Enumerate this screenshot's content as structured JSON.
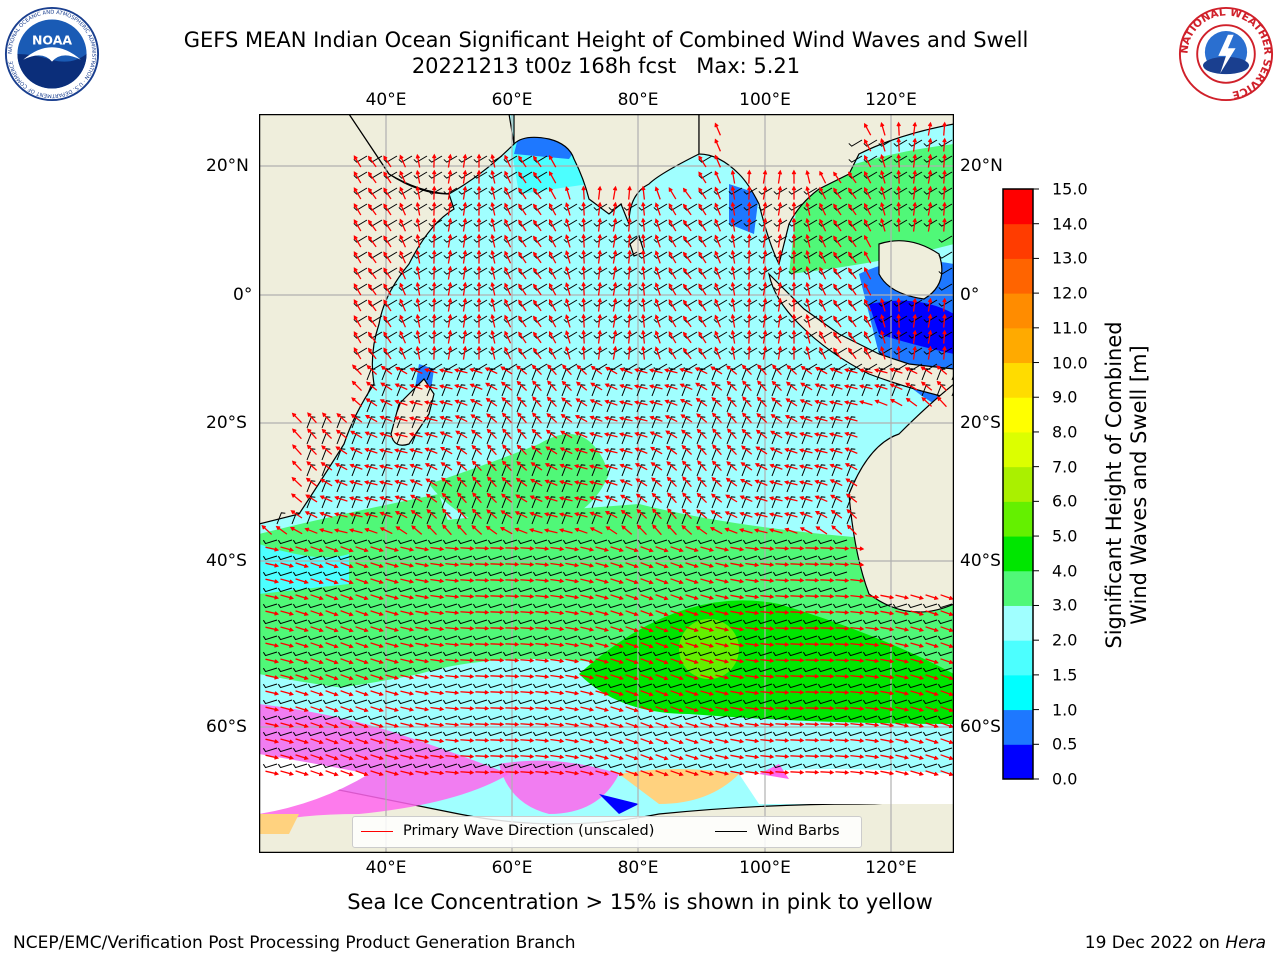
{
  "title": {
    "line1": "GEFS MEAN Indian Ocean Significant Height of Combined Wind Waves and Swell",
    "line2": "20221213 t00z 168h fcst   Max: 5.21"
  },
  "map": {
    "lon_ticks": [
      "40°E",
      "60°E",
      "80°E",
      "100°E",
      "120°E"
    ],
    "lat_ticks": [
      "20°N",
      "0°",
      "20°S",
      "40°S",
      "60°S"
    ],
    "colors": {
      "land": "#efeedc",
      "grid": "#b0b0b0",
      "wave_arrow": "#ff0000",
      "wind_barb": "#000000",
      "ice": [
        "#ff66ee",
        "#ffd27f",
        "#ffffff",
        "#0000ff"
      ]
    },
    "max_value": 5.21
  },
  "colorbar": {
    "title": "Significant Height of Combined Wind Waves and Swell [m]",
    "title_line1": "Significant Height of Combined",
    "title_line2": "Wind Waves and Swell [m]",
    "levels": [
      "0.0",
      "0.5",
      "1.0",
      "1.5",
      "2.0",
      "3.0",
      "4.0",
      "5.0",
      "6.0",
      "7.0",
      "8.0",
      "9.0",
      "10.0",
      "11.0",
      "12.0",
      "13.0",
      "14.0",
      "15.0"
    ],
    "colors": [
      "#0000ff",
      "#1e78ff",
      "#00ffff",
      "#4cffff",
      "#a0ffff",
      "#50f878",
      "#00e600",
      "#64f000",
      "#aaf000",
      "#dcff00",
      "#ffff00",
      "#ffdc00",
      "#ffaa00",
      "#ff8c00",
      "#ff6400",
      "#ff3c00",
      "#ff0000"
    ]
  },
  "legend": {
    "wave_label": "Primary Wave Direction (unscaled)",
    "wind_label": "Wind Barbs"
  },
  "caption": "Sea Ice Concentration > 15% is shown in pink to yellow",
  "footer": {
    "credit": "NCEP/EMC/Verification Post Processing Product Generation Branch",
    "date": "19 Dec 2022 on",
    "host": "Hera"
  },
  "logos": {
    "noaa_text": "NOAA",
    "noaa_ring": "NATIONAL OCEANIC AND ATMOSPHERIC ADMINISTRATION · U.S. DEPARTMENT OF COMMERCE",
    "nws_ring": "NATIONAL WEATHER SERVICE"
  }
}
